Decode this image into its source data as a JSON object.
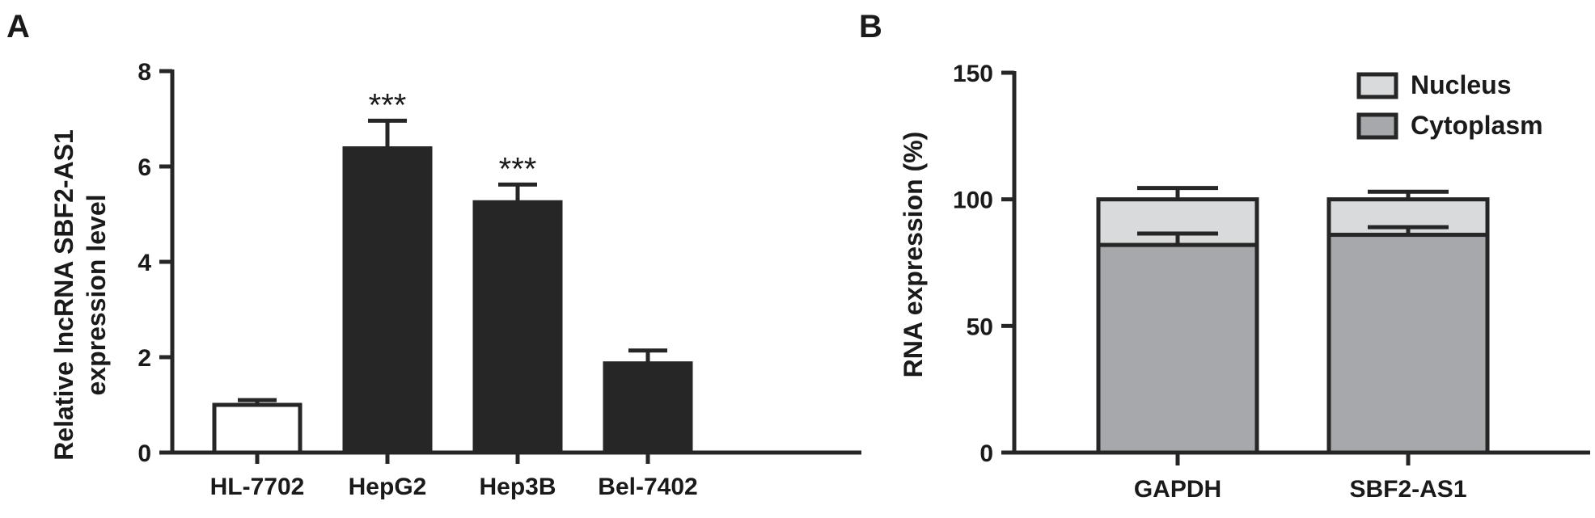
{
  "chart_data": [
    {
      "panel": "A",
      "type": "bar",
      "ylabel_lines": [
        "Relative lncRNA SBF2-AS1",
        "expression level"
      ],
      "xlabel": "",
      "categories": [
        "HL-7702",
        "HepG2",
        "Hep3B",
        "Bel-7402"
      ],
      "values": [
        1.0,
        6.38,
        5.25,
        1.87
      ],
      "errors": [
        0.1,
        0.58,
        0.37,
        0.27
      ],
      "significance": [
        "",
        "***",
        "***",
        ""
      ],
      "ylim": [
        0,
        8
      ],
      "yticks": [
        "0",
        "2",
        "4",
        "6",
        "8"
      ],
      "colors": {
        "control": "#ffffff",
        "bars": "#262626"
      },
      "grid": false
    },
    {
      "panel": "B",
      "type": "bar",
      "stacked": true,
      "ylabel": "RNA expression (%)",
      "xlabel": "",
      "categories": [
        "GAPDH",
        "SBF2-AS1"
      ],
      "series": [
        {
          "name": "Cytoplasm",
          "values": [
            82,
            86
          ],
          "errors": [
            4.5,
            3
          ],
          "color": "#a7a8ac"
        },
        {
          "name": "Nucleus",
          "values": [
            18,
            14
          ],
          "errors": [
            4.5,
            3
          ],
          "color": "#d9dadb"
        }
      ],
      "ylim": [
        0,
        150
      ],
      "yticks": [
        "0",
        "50",
        "100",
        "150"
      ],
      "legend_position": "top-right",
      "grid": false
    }
  ]
}
